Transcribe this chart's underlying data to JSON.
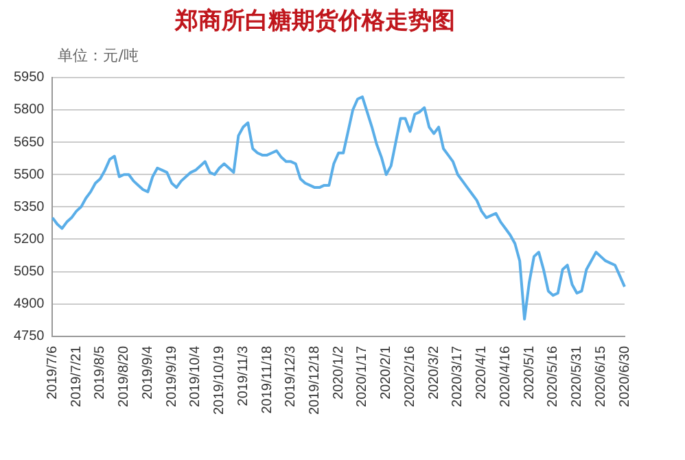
{
  "chart_data": {
    "type": "line",
    "title": "郑商所白糖期货价格走势图",
    "ylabel": "单位：元/吨",
    "categories": [
      "2019/7/6",
      null,
      null,
      null,
      null,
      "2019/7/21",
      null,
      null,
      null,
      null,
      "2019/8/5",
      null,
      null,
      null,
      null,
      "2019/8/20",
      null,
      null,
      null,
      null,
      "2019/9/4",
      null,
      null,
      null,
      null,
      "2019/9/19",
      null,
      null,
      null,
      null,
      "2019/10/4",
      null,
      null,
      null,
      null,
      "2019/10/19",
      null,
      null,
      null,
      null,
      "2019/11/3",
      null,
      null,
      null,
      null,
      "2019/11/18",
      null,
      null,
      null,
      null,
      "2019/12/3",
      null,
      null,
      null,
      null,
      "2019/12/18",
      null,
      null,
      null,
      null,
      "2020/1/2",
      null,
      null,
      null,
      null,
      "2020/1/17",
      null,
      null,
      null,
      null,
      "2020/2/1",
      null,
      null,
      null,
      null,
      "2020/2/16",
      null,
      null,
      null,
      null,
      "2020/3/2",
      null,
      null,
      null,
      null,
      "2020/3/17",
      null,
      null,
      null,
      null,
      "2020/4/1",
      null,
      null,
      null,
      null,
      "2020/4/16",
      null,
      null,
      null,
      null,
      "2020/5/1",
      null,
      null,
      null,
      null,
      "2020/5/16",
      null,
      null,
      null,
      null,
      "2020/5/31",
      null,
      null,
      null,
      null,
      "2020/6/15",
      null,
      null,
      null,
      null,
      "2020/6/30"
    ],
    "series": [
      {
        "color": "#5aaee8",
        "values": [
          5300,
          5270,
          5250,
          5280,
          5300,
          5330,
          5350,
          5390,
          5420,
          5460,
          5480,
          5520,
          5570,
          5585,
          5490,
          5500,
          5500,
          5470,
          5450,
          5430,
          5420,
          5490,
          5530,
          5520,
          5510,
          5460,
          5440,
          5470,
          5490,
          5510,
          5520,
          5540,
          5560,
          5510,
          5500,
          5530,
          5550,
          5530,
          5510,
          5680,
          5720,
          5740,
          5620,
          5600,
          5590,
          5590,
          5600,
          5610,
          5580,
          5560,
          5560,
          5550,
          5480,
          5460,
          5450,
          5440,
          5440,
          5450,
          5450,
          5550,
          5600,
          5600,
          5700,
          5800,
          5850,
          5860,
          5790,
          5720,
          5640,
          5580,
          5500,
          5540,
          5650,
          5760,
          5760,
          5700,
          5780,
          5790,
          5810,
          5720,
          5690,
          5720,
          5620,
          5590,
          5560,
          5500,
          5470,
          5440,
          5410,
          5380,
          5330,
          5300,
          5310,
          5320,
          5280,
          5250,
          5220,
          5180,
          5100,
          4830,
          5000,
          5120,
          5140,
          5060,
          4960,
          4940,
          4950,
          5060,
          5080,
          4990,
          4950,
          4960,
          5060,
          5100,
          5140,
          5120,
          5100,
          5090,
          5080,
          5030,
          4980
        ]
      }
    ],
    "ylim": [
      4750,
      5950
    ],
    "yticks": [
      4750,
      4900,
      5050,
      5200,
      5350,
      5500,
      5650,
      5800,
      5950
    ],
    "grid": "y",
    "legend": false,
    "marker": "none",
    "line_style": "solid"
  }
}
